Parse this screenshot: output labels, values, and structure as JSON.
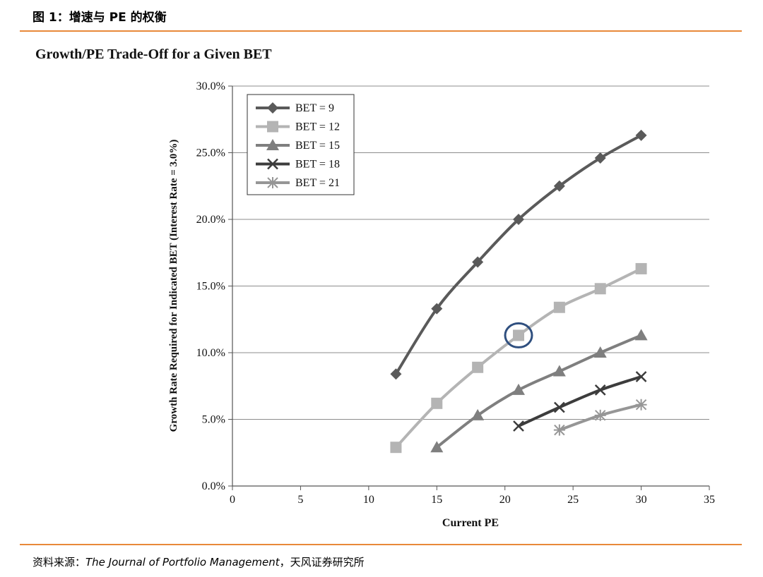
{
  "header": {
    "figure_title": "图 1：增速与 PE 的权衡"
  },
  "source": {
    "prefix": "资料来源：",
    "publication": "The Journal of Portfolio Management",
    "suffix": "，天风证券研究所"
  },
  "chart_data": {
    "type": "line",
    "title": "Growth/PE Trade-Off for a Given BET",
    "xlabel": "Current PE",
    "ylabel": "Growth Rate Required for Indicated BET (Interest Rate = 3.0%)",
    "xlim": [
      0,
      35
    ],
    "ylim": [
      0,
      30
    ],
    "x_ticks": [
      "0",
      "5",
      "10",
      "15",
      "20",
      "25",
      "30",
      "35"
    ],
    "y_ticks": [
      "0.0%",
      "5.0%",
      "10.0%",
      "15.0%",
      "20.0%",
      "25.0%",
      "30.0%"
    ],
    "grid": "horizontal",
    "legend_position": "top-left",
    "series": [
      {
        "name": "BET = 9",
        "color": "#5a5a5a",
        "marker": "diamond",
        "x": [
          12,
          15,
          18,
          21,
          24,
          27,
          30
        ],
        "y": [
          8.4,
          13.3,
          16.8,
          20.0,
          22.5,
          24.6,
          26.3
        ]
      },
      {
        "name": "BET = 12",
        "color": "#b4b4b4",
        "marker": "square",
        "x": [
          12,
          15,
          18,
          21,
          24,
          27,
          30
        ],
        "y": [
          2.9,
          6.2,
          8.9,
          11.3,
          13.4,
          14.8,
          16.3
        ]
      },
      {
        "name": "BET = 15",
        "color": "#7f7f7f",
        "marker": "triangle",
        "x": [
          15,
          18,
          21,
          24,
          27,
          30
        ],
        "y": [
          2.9,
          5.3,
          7.2,
          8.6,
          10.0,
          11.3
        ]
      },
      {
        "name": "BET = 18",
        "color": "#3c3c3c",
        "marker": "x",
        "x": [
          21,
          24,
          27,
          30
        ],
        "y": [
          4.5,
          5.9,
          7.2,
          8.2
        ]
      },
      {
        "name": "BET = 21",
        "color": "#969696",
        "marker": "asterisk",
        "x": [
          24,
          27,
          30
        ],
        "y": [
          4.2,
          5.3,
          6.1
        ]
      }
    ],
    "highlight": {
      "x": 21,
      "y": 11.3,
      "color": "#2f4f7f"
    }
  }
}
